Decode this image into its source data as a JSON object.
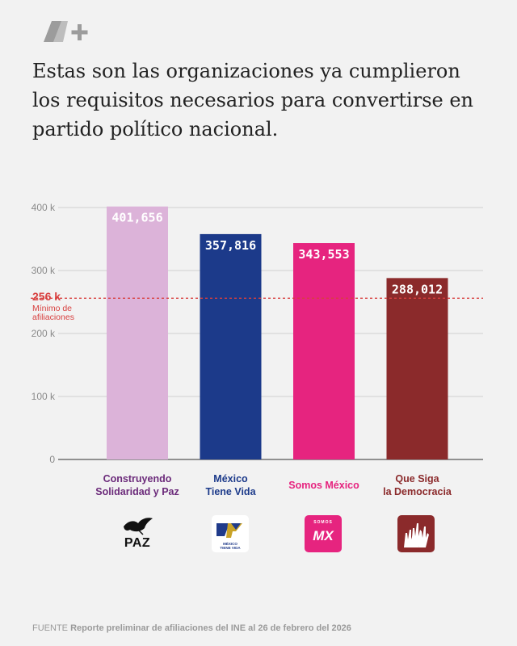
{
  "brand": {
    "name": "N+",
    "icon": "nplus-logo"
  },
  "headline": "Estas son las organizaciones ya cumplieron los requisitos necesarios para convertirse en partido político nacional.",
  "chart_data": {
    "type": "bar",
    "title": "",
    "xlabel": "",
    "ylabel": "",
    "ylim": [
      0,
      400000
    ],
    "yticks": [
      {
        "value": 0,
        "label": "0"
      },
      {
        "value": 100000,
        "label": "100 k"
      },
      {
        "value": 200000,
        "label": "200 k"
      },
      {
        "value": 300000,
        "label": "300 k"
      },
      {
        "value": 400000,
        "label": "400 k"
      }
    ],
    "grid": true,
    "categories": [
      {
        "lines": [
          "Construyendo",
          "Solidaridad y Paz"
        ],
        "color": "#dcb3d9",
        "label_color": "#6b2a7a"
      },
      {
        "lines": [
          "México",
          "Tiene Vida"
        ],
        "color": "#1c3a8a",
        "label_color": "#1c3a8a"
      },
      {
        "lines": [
          "Somos México"
        ],
        "color": "#e6247f",
        "label_color": "#e6247f"
      },
      {
        "lines": [
          "Que Siga",
          "la Democracia"
        ],
        "color": "#8b2a2b",
        "label_color": "#8b2a2b"
      }
    ],
    "values": [
      401656,
      357816,
      343553,
      288012
    ],
    "value_labels": [
      "401,656",
      "357,816",
      "343,553",
      "288,012"
    ],
    "threshold": {
      "value": 256000,
      "label_value": "256 k",
      "label_lines": [
        "Mínimo de",
        "afiliaciones"
      ],
      "color": "#d8403f"
    }
  },
  "logos": [
    {
      "icon": "paz-dove-logo",
      "text": "PAZ"
    },
    {
      "icon": "mexico-tiene-vida-logo",
      "text": [
        "MÉXICO",
        "TIENE VIDA"
      ]
    },
    {
      "icon": "somos-mx-logo",
      "small": "SOMOS",
      "big": "MX"
    },
    {
      "icon": "que-siga-la-democracia-hands-logo"
    }
  ],
  "source": {
    "label": "FUENTE",
    "text": "Reporte preliminar de afiliaciones del INE al 26 de febrero del 2026"
  }
}
